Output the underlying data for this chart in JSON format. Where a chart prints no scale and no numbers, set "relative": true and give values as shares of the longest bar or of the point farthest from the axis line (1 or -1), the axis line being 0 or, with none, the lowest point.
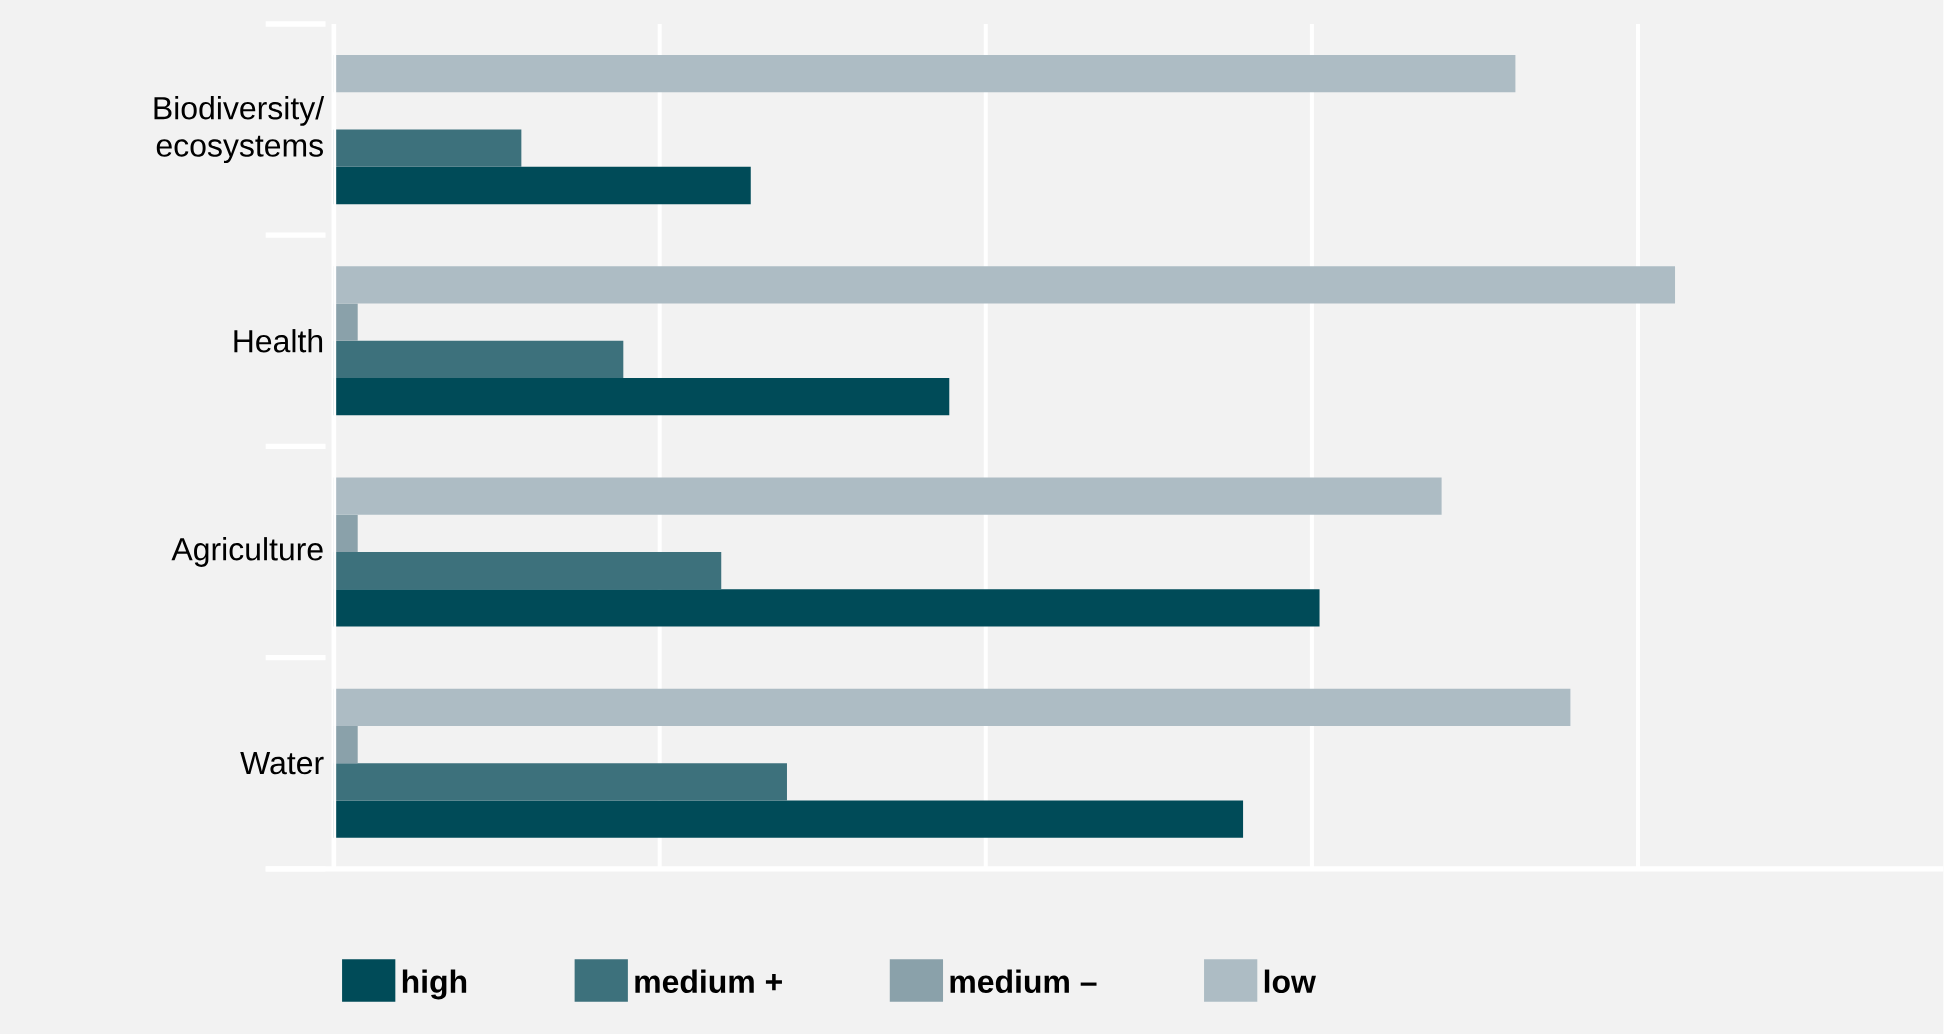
{
  "chart_data": {
    "type": "bar",
    "orientation": "horizontal",
    "relative": true,
    "grid": "x",
    "legend": "bottom",
    "categories": [
      "Biodiversity/ ecosystems",
      "Health",
      "Agriculture",
      "Water"
    ],
    "series": [
      {
        "name": "high",
        "color": "#004b58",
        "values": [
          0.311,
          0.459,
          0.735,
          0.678
        ]
      },
      {
        "name": "medium +",
        "color": "#3d717c",
        "values": [
          0.14,
          0.216,
          0.289,
          0.338
        ]
      },
      {
        "name": "medium –",
        "color": "#8aa1aa",
        "values": [
          null,
          0.018,
          0.018,
          0.018
        ]
      },
      {
        "name": "low",
        "color": "#adbcc4",
        "values": [
          0.881,
          1,
          0.826,
          0.922
        ]
      }
    ]
  }
}
